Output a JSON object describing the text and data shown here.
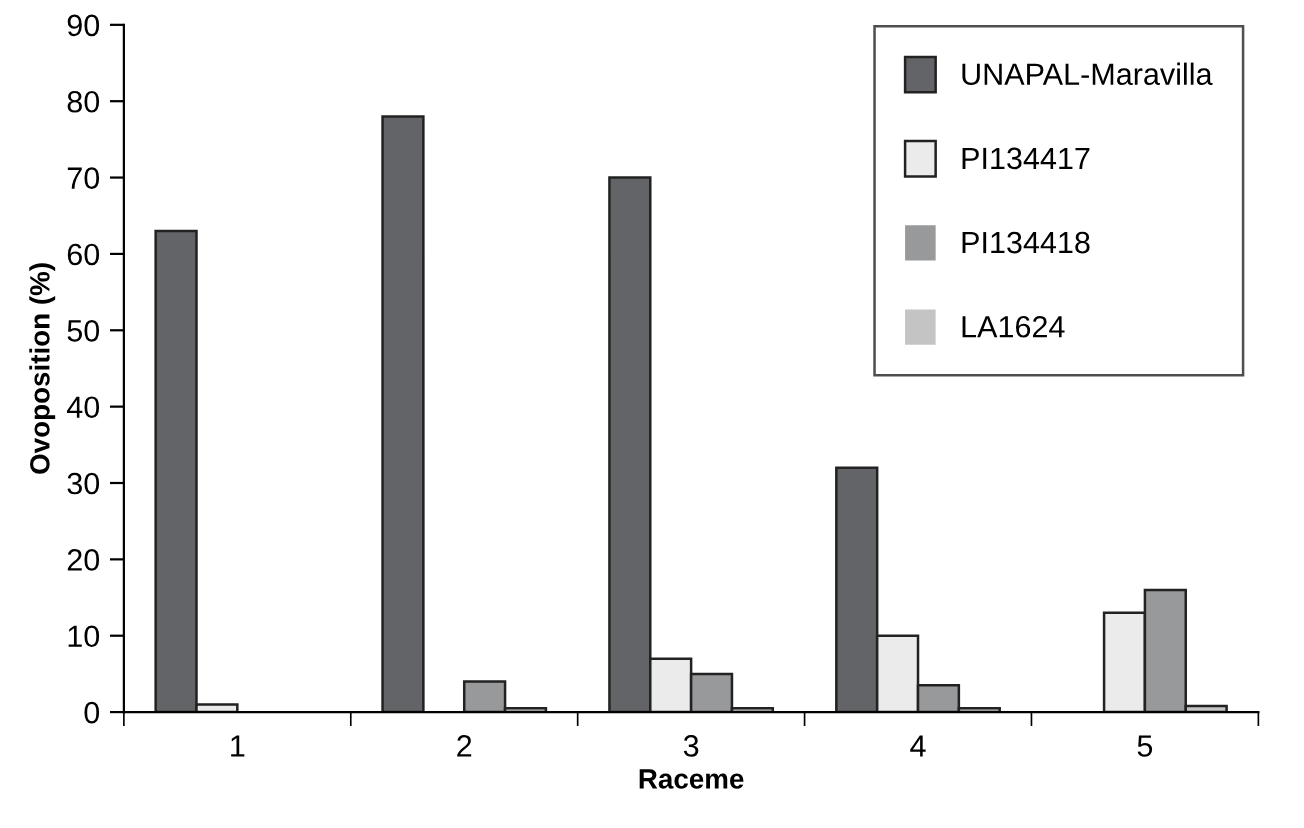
{
  "chart_data": {
    "type": "bar",
    "xlabel": "Raceme",
    "ylabel": "Ovoposition (%)",
    "categories": [
      "1",
      "2",
      "3",
      "4",
      "5"
    ],
    "series": [
      {
        "name": "UNAPAL-Maravilla",
        "color": "#636467",
        "values": [
          63,
          78,
          70,
          32,
          0
        ]
      },
      {
        "name": "PI134417",
        "color": "#ebebeb",
        "values": [
          1,
          0,
          7,
          10,
          13
        ]
      },
      {
        "name": "PI134418",
        "color": "#98999b",
        "values": [
          0,
          4,
          5,
          3.5,
          16
        ]
      },
      {
        "name": "LA1624",
        "color": "#c4c4c4",
        "values": [
          0,
          0.5,
          0.5,
          0.5,
          0.8
        ]
      }
    ],
    "ylim": [
      0,
      90
    ],
    "yticks": [
      0,
      10,
      20,
      30,
      40,
      50,
      60,
      70,
      80,
      90
    ],
    "grid": false,
    "legend": "top right"
  }
}
